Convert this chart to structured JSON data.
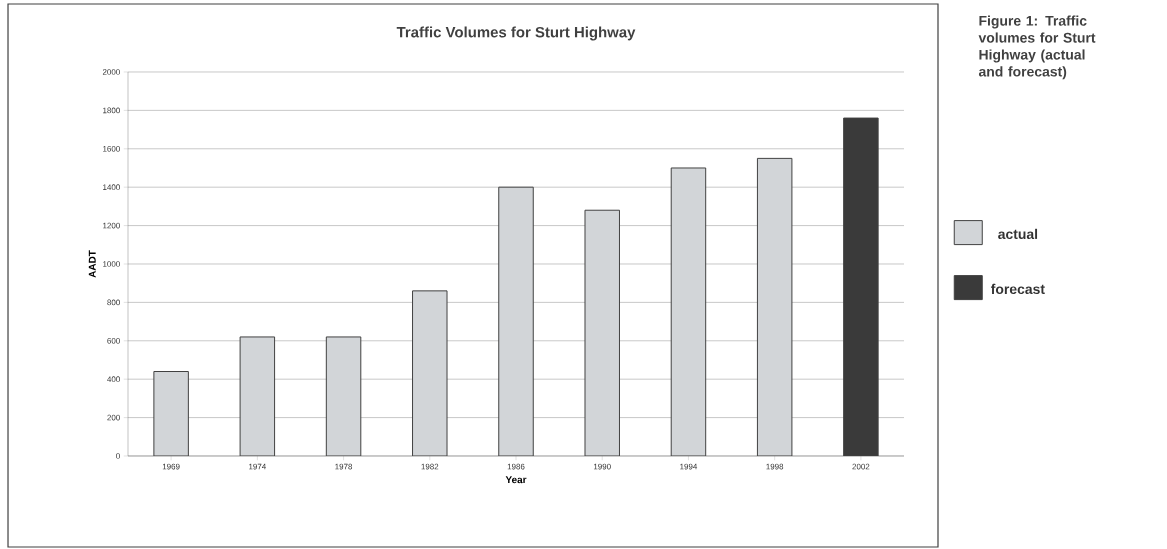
{
  "chart_data": {
    "type": "bar",
    "title": "Traffic Volumes for Sturt Highway",
    "xlabel": "Year",
    "ylabel": "AADT",
    "categories": [
      "1969",
      "1974",
      "1978",
      "1982",
      "1986",
      "1990",
      "1994",
      "1998",
      "2002"
    ],
    "series": [
      {
        "name": "actual",
        "color": "#d2d5d8",
        "values": [
          440,
          620,
          620,
          860,
          1400,
          1280,
          1500,
          1550,
          null
        ]
      },
      {
        "name": "forecast",
        "color": "#3a3a3a",
        "values": [
          null,
          null,
          null,
          null,
          null,
          null,
          null,
          null,
          1760
        ]
      }
    ],
    "ylim": [
      0,
      2000
    ],
    "yticks": [
      0,
      200,
      400,
      600,
      800,
      1000,
      1200,
      1400,
      1600,
      1800,
      2000
    ],
    "grid": "y",
    "legend": "right",
    "annotations": [
      "Figure 1:  Traffic volumes for Sturt Highway (actual and forecast)"
    ]
  }
}
